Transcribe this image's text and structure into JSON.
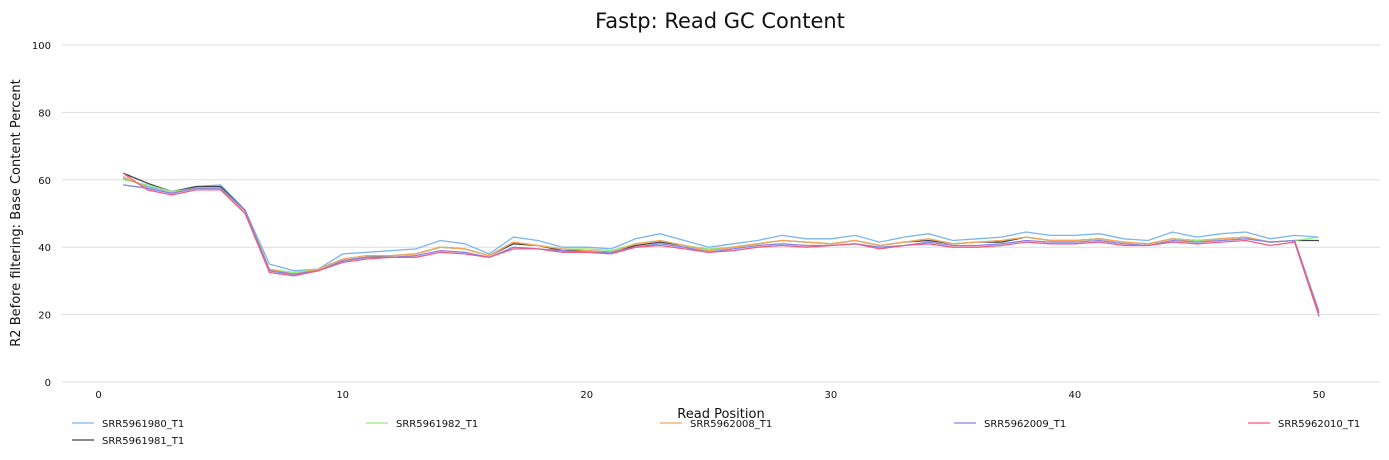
{
  "chart_data": {
    "type": "line",
    "title": "Fastp: Read GC Content",
    "xlabel": "Read Position",
    "ylabel": "R2 Before filtering: Base Content Percent",
    "xlim": [
      -1.5,
      52.5
    ],
    "ylim": [
      0,
      100
    ],
    "xticks": [
      0,
      10,
      20,
      30,
      40,
      50
    ],
    "yticks": [
      0,
      20,
      40,
      60,
      80,
      100
    ],
    "grid": "horizontal",
    "legend_position": "bottom",
    "x": [
      1,
      2,
      3,
      4,
      5,
      6,
      7,
      8,
      9,
      10,
      11,
      12,
      13,
      14,
      15,
      16,
      17,
      18,
      19,
      20,
      21,
      22,
      23,
      24,
      25,
      26,
      27,
      28,
      29,
      30,
      31,
      32,
      33,
      34,
      35,
      36,
      37,
      38,
      39,
      40,
      41,
      42,
      43,
      44,
      45,
      46,
      47,
      48,
      49,
      50
    ],
    "series": [
      {
        "name": "SRR5961980_T1",
        "color": "#7cb5ec",
        "values": [
          60.5,
          58,
          56.5,
          58,
          58.5,
          51,
          35,
          33,
          33.5,
          38,
          38.5,
          39,
          39.5,
          42,
          41,
          38,
          43,
          42,
          40,
          40,
          39.5,
          42.5,
          44,
          42,
          40,
          41,
          42,
          43.5,
          42.5,
          42.5,
          43.5,
          41.5,
          43,
          44,
          42,
          42.5,
          43,
          44.5,
          43.5,
          43.5,
          44,
          42.5,
          42,
          44.5,
          43,
          44,
          44.5,
          42.5,
          43.5,
          43
        ]
      },
      {
        "name": "SRR5961981_T1",
        "color": "#434348",
        "values": [
          62,
          59,
          56.5,
          58,
          58,
          51,
          33,
          32,
          33,
          36,
          37,
          37.5,
          38,
          40,
          39.5,
          37.5,
          41,
          40.5,
          39,
          39,
          38.5,
          40.5,
          41.5,
          40.5,
          39,
          40,
          41,
          42,
          41.5,
          41,
          42,
          40.5,
          41.5,
          42,
          41,
          41.5,
          41.5,
          43,
          42,
          42,
          42.5,
          41.5,
          41,
          42.5,
          42,
          42.5,
          43,
          41.5,
          42,
          42
        ]
      },
      {
        "name": "SRR5961982_T1",
        "color": "#90ed7d",
        "values": [
          60,
          58.5,
          56.5,
          57.5,
          57.5,
          51,
          33.5,
          32.5,
          33.5,
          36.5,
          37.5,
          37.5,
          38,
          40,
          39.5,
          37.5,
          41.5,
          40.5,
          39.5,
          39.5,
          39,
          41,
          42,
          40.5,
          39.5,
          40,
          41,
          42,
          41.5,
          41,
          42,
          40.5,
          41.5,
          42.5,
          41,
          41.5,
          42,
          43,
          42,
          42,
          42.5,
          41.5,
          41,
          42.5,
          42,
          42.5,
          43,
          41.5,
          42,
          43
        ]
      },
      {
        "name": "SRR5962008_T1",
        "color": "#f7a35c",
        "values": [
          61,
          57.5,
          56,
          57.5,
          57.5,
          50.5,
          33.5,
          32,
          33.5,
          36.5,
          37.5,
          37.5,
          38,
          40,
          39.5,
          37.5,
          41.5,
          40.5,
          39.5,
          39,
          38.5,
          41,
          42,
          40.5,
          39,
          40,
          41,
          42,
          41.5,
          41,
          42,
          40.5,
          41.5,
          42.5,
          41,
          41.5,
          42,
          43,
          42,
          42,
          42.5,
          41.5,
          41,
          42.5,
          41.5,
          42.5,
          43,
          41.5,
          42,
          21
        ]
      },
      {
        "name": "SRR5962009_T1",
        "color": "#8085e9",
        "values": [
          58.5,
          57.5,
          56,
          57.5,
          57.5,
          51,
          33,
          32,
          33,
          36,
          37,
          37,
          37.5,
          39,
          38.5,
          37,
          40,
          39.5,
          39,
          38.5,
          38.5,
          40,
          41,
          40,
          38.5,
          39.5,
          40.5,
          41,
          40.5,
          40.5,
          41,
          40,
          40.5,
          41.5,
          40.5,
          40.5,
          41,
          42,
          41.5,
          41.5,
          42,
          41,
          40.5,
          42,
          41.5,
          42,
          42.5,
          41.5,
          42,
          20.5
        ]
      },
      {
        "name": "SRR5962010_T1",
        "color": "#f15c80",
        "values": [
          62,
          57,
          55.5,
          57,
          57,
          50,
          32.5,
          31.5,
          33,
          35.5,
          36.5,
          37,
          37,
          38.5,
          38,
          37,
          39.5,
          39.5,
          38.5,
          38.5,
          38,
          40,
          40.5,
          39.5,
          38.5,
          39,
          40,
          40.5,
          40,
          40.5,
          41,
          39.5,
          40.5,
          41,
          40,
          40,
          40.5,
          41.5,
          41,
          41,
          41.5,
          40.5,
          40.5,
          41.5,
          41,
          41.5,
          42,
          40.5,
          41.5,
          19.5
        ]
      }
    ]
  }
}
